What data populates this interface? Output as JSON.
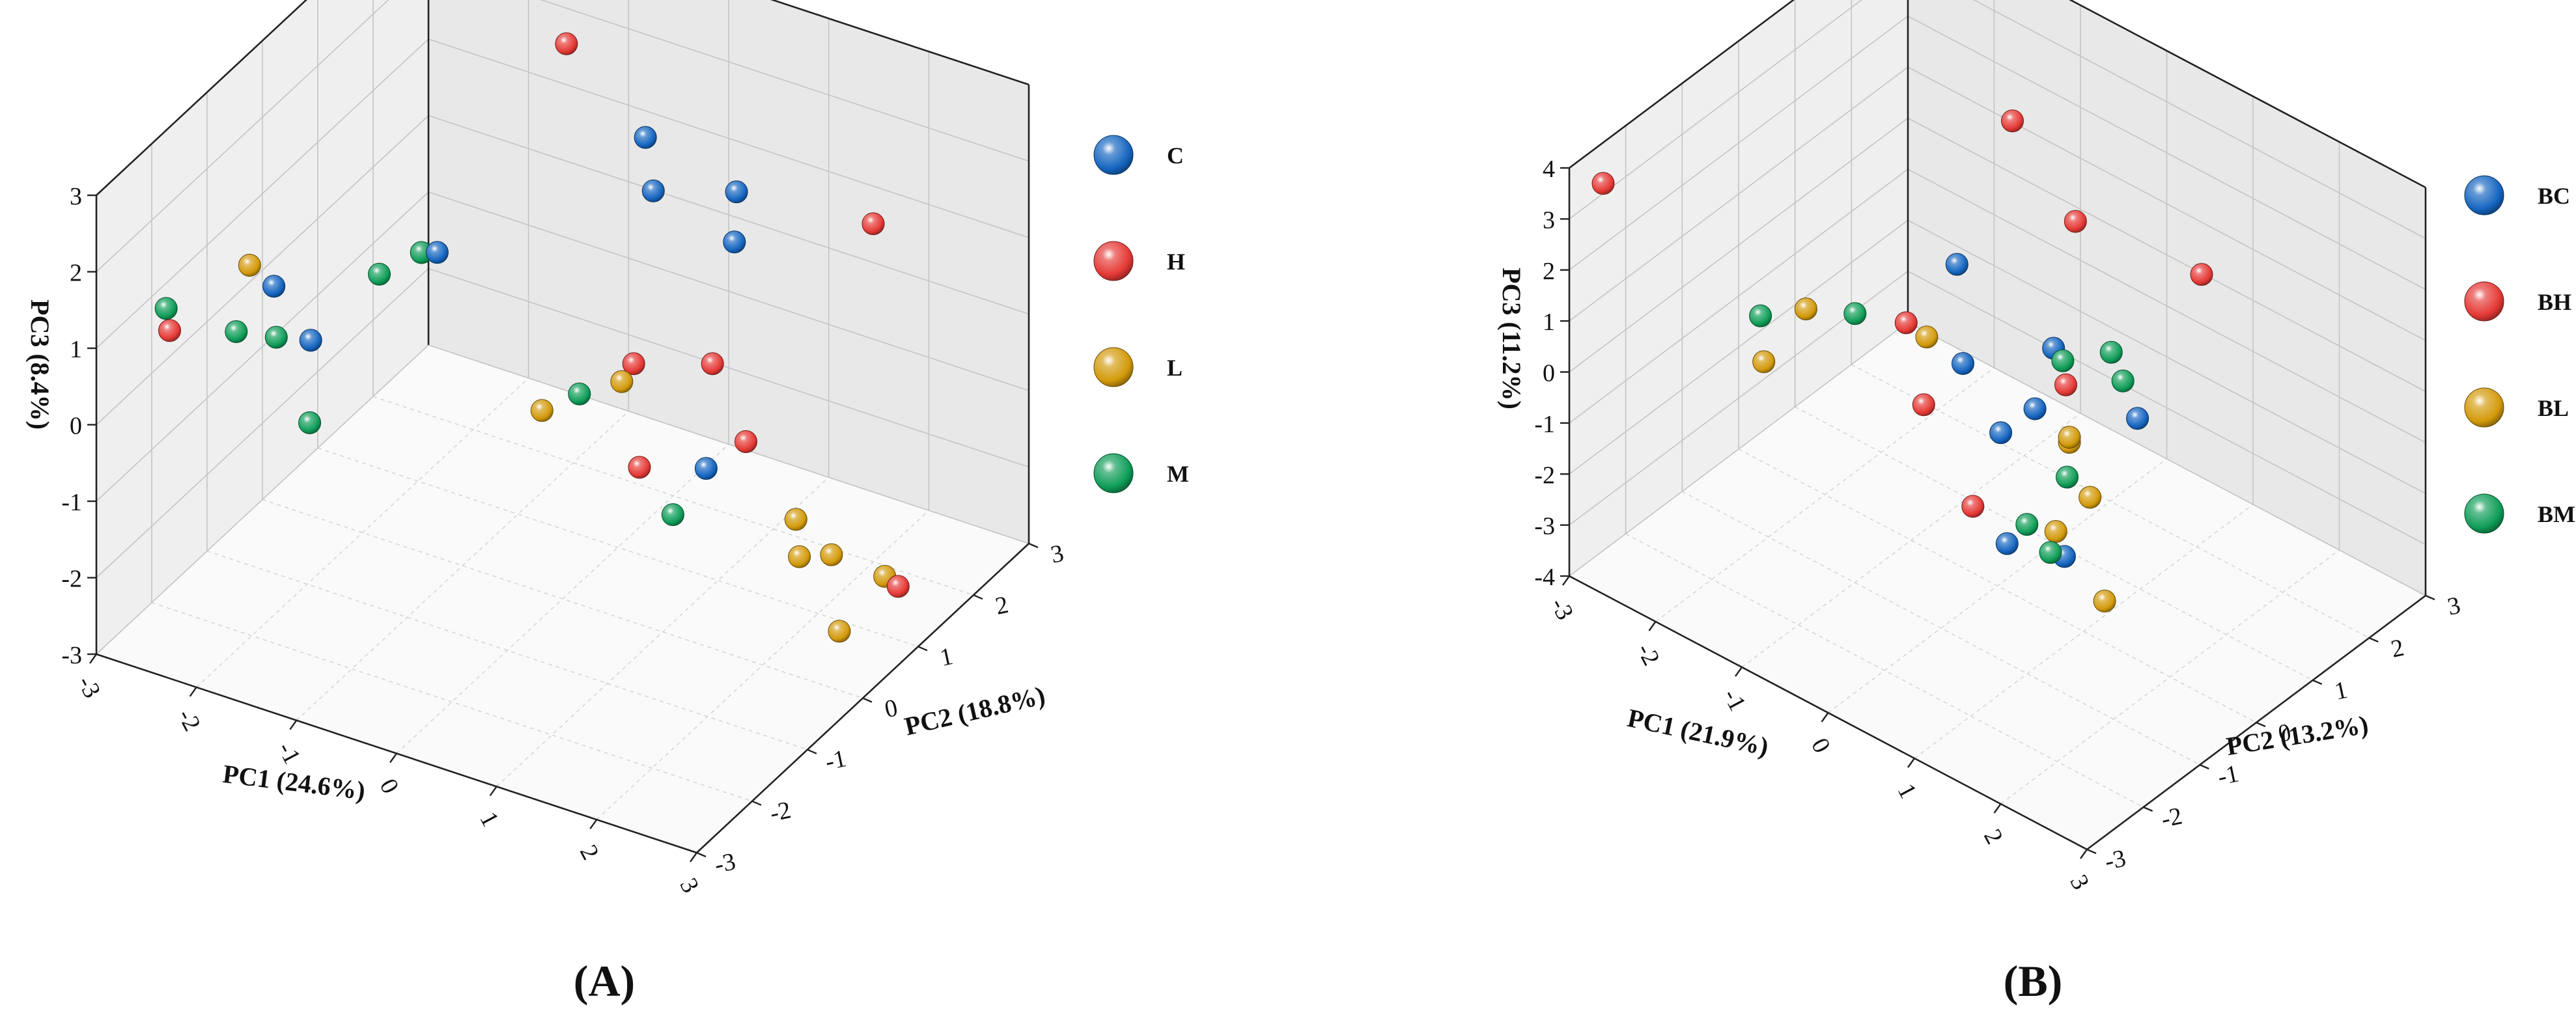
{
  "chart_data": [
    {
      "type": "scatter",
      "panel_label": "A",
      "xlabel": "PC1 (24.6%)",
      "ylabel": "PC2 (18.8%)",
      "zlabel": "PC3 (8.4%)",
      "xlim": [
        -3,
        3
      ],
      "ylim": [
        -3,
        3
      ],
      "zlim": [
        -3,
        3
      ],
      "x_ticks": [
        "-3",
        "-2",
        "-1",
        "0",
        "1",
        "2",
        "3"
      ],
      "y_ticks": [
        "-3",
        "-2",
        "-1",
        "0",
        "1",
        "2",
        "3"
      ],
      "z_ticks": [
        "-3",
        "-2",
        "-1",
        "0",
        "1",
        "2",
        "3"
      ],
      "grid": true,
      "legend_position": "right",
      "series": [
        {
          "name": "C",
          "color": "#1565C0",
          "points": [
            {
              "x": -2.0,
              "y": -1.6,
              "z": 1.3
            },
            {
              "x": -1.3,
              "y": -2.2,
              "z": 1.3
            },
            {
              "x": -0.7,
              "y": -1.0,
              "z": 1.9
            },
            {
              "x": 1.6,
              "y": -0.3,
              "z": -0.4
            },
            {
              "x": -0.5,
              "y": 2.4,
              "z": 1.2
            },
            {
              "x": -0.2,
              "y": 2.0,
              "z": 0.9
            },
            {
              "x": 0.3,
              "y": 2.6,
              "z": 0.7
            },
            {
              "x": 0.5,
              "y": 2.2,
              "z": 0.4
            }
          ]
        },
        {
          "name": "H",
          "color": "#E53935",
          "points": [
            {
              "x": -2.6,
              "y": -2.4,
              "z": 1.0
            },
            {
              "x": 1.1,
              "y": -0.6,
              "z": -0.4
            },
            {
              "x": 0.6,
              "y": 0.2,
              "z": 0.2
            },
            {
              "x": 1.5,
              "y": 0.6,
              "z": -0.7
            },
            {
              "x": 2.8,
              "y": 1.0,
              "z": -2.3
            },
            {
              "x": -1.4,
              "y": 2.6,
              "z": 1.9
            },
            {
              "x": 1.5,
              "y": 2.9,
              "z": 0.6
            },
            {
              "x": 1.0,
              "y": 0.9,
              "z": -0.1
            }
          ]
        },
        {
          "name": "L",
          "color": "#D39A0B",
          "points": [
            {
              "x": -1.8,
              "y": -2.4,
              "z": 2.2
            },
            {
              "x": 1.2,
              "y": -1.1,
              "z": 1.1
            },
            {
              "x": 0.9,
              "y": -2.0,
              "z": 1.2
            },
            {
              "x": 2.0,
              "y": 0.6,
              "z": -1.5
            },
            {
              "x": 2.3,
              "y": 0.7,
              "z": -1.9
            },
            {
              "x": 2.6,
              "y": 0.3,
              "z": -2.5
            },
            {
              "x": 2.2,
              "y": 0.3,
              "z": -1.7
            },
            {
              "x": 2.5,
              "y": 1.3,
              "z": -2.5
            }
          ]
        },
        {
          "name": "M",
          "color": "#0F9D58",
          "points": [
            {
              "x": -2.8,
              "y": -2.1,
              "z": 1.0
            },
            {
              "x": -1.7,
              "y": -2.1,
              "z": 1.1
            },
            {
              "x": -2.1,
              "y": -2.1,
              "z": 1.0
            },
            {
              "x": -1.5,
              "y": -0.6,
              "z": 1.0
            },
            {
              "x": -1.3,
              "y": -0.2,
              "z": 1.1
            },
            {
              "x": 0.5,
              "y": -0.6,
              "z": 0.3
            },
            {
              "x": -1.2,
              "y": -2.4,
              "z": 0.4
            },
            {
              "x": 1.6,
              "y": -0.9,
              "z": -0.6
            }
          ]
        }
      ]
    },
    {
      "type": "scatter",
      "panel_label": "B",
      "xlabel": "PC1 (21.9%)",
      "ylabel": "PC2 (13.2%)",
      "zlabel": "PC3 (11.2%)",
      "xlim": [
        -3,
        3
      ],
      "ylim": [
        -3,
        3
      ],
      "zlim": [
        -4,
        4
      ],
      "x_ticks": [
        "-3",
        "-2",
        "-1",
        "0",
        "1",
        "2",
        "3"
      ],
      "y_ticks": [
        "-3",
        "-2",
        "-1",
        "0",
        "1",
        "2",
        "3"
      ],
      "z_ticks": [
        "-4",
        "-3",
        "-2",
        "-1",
        "0",
        "1",
        "2",
        "3",
        "4"
      ],
      "grid": true,
      "legend_position": "right",
      "series": [
        {
          "name": "BC",
          "color": "#1565C0",
          "points": [
            {
              "x": -0.6,
              "y": 0.2,
              "z": 1.6
            },
            {
              "x": -0.4,
              "y": 0.0,
              "z": 0.0
            },
            {
              "x": 0.5,
              "y": -0.1,
              "z": 0.0
            },
            {
              "x": 0.3,
              "y": -0.4,
              "z": -0.4
            },
            {
              "x": 1.1,
              "y": 0.8,
              "z": -0.4
            },
            {
              "x": 0.7,
              "y": -0.9,
              "z": -1.8
            },
            {
              "x": -0.2,
              "y": 1.3,
              "z": -0.6
            },
            {
              "x": 1.3,
              "y": -0.8,
              "z": -1.6
            }
          ]
        },
        {
          "name": "BH",
          "color": "#E53935",
          "points": [
            {
              "x": -3.0,
              "y": -2.4,
              "z": 3.2
            },
            {
              "x": -0.6,
              "y": -0.7,
              "z": 1.2
            },
            {
              "x": -0.2,
              "y": -1.0,
              "z": 0.2
            },
            {
              "x": 0.5,
              "y": -1.2,
              "z": -1.0
            },
            {
              "x": -0.6,
              "y": 2.3,
              "z": 0.7
            },
            {
              "x": 0.6,
              "y": 2.7,
              "z": 0.4
            },
            {
              "x": -1.2,
              "y": 2.1,
              "z": 2.3
            },
            {
              "x": 0.4,
              "y": 0.6,
              "z": -0.2
            }
          ]
        },
        {
          "name": "BL",
          "color": "#D39A0B",
          "points": [
            {
              "x": -1.4,
              "y": -2.0,
              "z": 0.8
            },
            {
              "x": -1.5,
              "y": -1.1,
              "z": 1.0
            },
            {
              "x": -0.1,
              "y": -1.1,
              "z": 1.7
            },
            {
              "x": 1.2,
              "y": -0.8,
              "z": -1.2
            },
            {
              "x": 1.4,
              "y": -0.5,
              "z": -0.6
            },
            {
              "x": 0.9,
              "y": -0.1,
              "z": -0.3
            },
            {
              "x": 0.9,
              "y": -0.1,
              "z": -0.2
            },
            {
              "x": 1.7,
              "y": -0.7,
              "z": -2.2
            }
          ]
        },
        {
          "name": "BM",
          "color": "#0F9D58",
          "points": [
            {
              "x": -1.7,
              "y": -1.6,
              "z": 1.1
            },
            {
              "x": -0.8,
              "y": -1.3,
              "z": 1.7
            },
            {
              "x": 1.2,
              "y": -0.6,
              "z": -0.3
            },
            {
              "x": 1.4,
              "y": -1.2,
              "z": -1.1
            },
            {
              "x": 0.3,
              "y": 0.7,
              "z": 0.1
            },
            {
              "x": 0.6,
              "y": 1.1,
              "z": 0.2
            },
            {
              "x": 0.8,
              "y": 1.0,
              "z": -0.1
            },
            {
              "x": 0.8,
              "y": -0.7,
              "z": -1.5
            }
          ]
        }
      ]
    }
  ]
}
